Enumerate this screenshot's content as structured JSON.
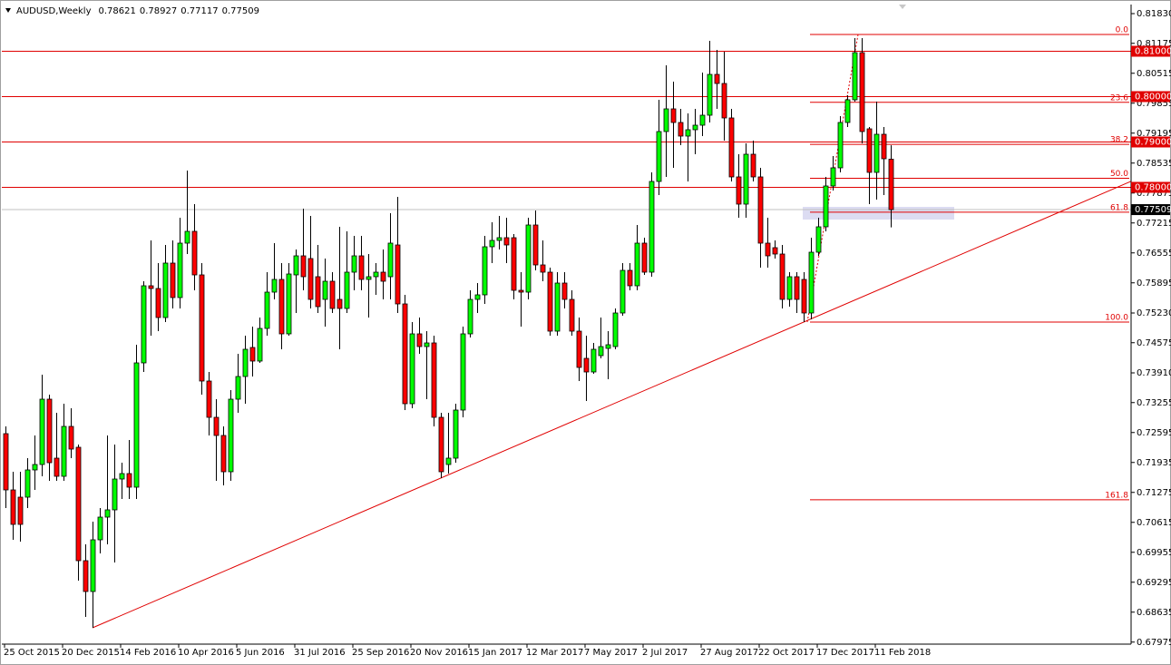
{
  "chart_data": {
    "type": "candlestick",
    "title": "AUDUSD,Weekly",
    "up_color": "#00ff00",
    "down_color": "#ff0000",
    "categories": [
      "25 Oct 2015",
      null,
      null,
      null,
      null,
      null,
      null,
      null,
      "20 Dec 2015",
      null,
      null,
      null,
      null,
      null,
      null,
      null,
      "14 Feb 2016",
      null,
      null,
      null,
      null,
      null,
      null,
      null,
      "10 Apr 2016",
      null,
      null,
      null,
      null,
      null,
      null,
      null,
      "5 Jun 2016",
      null,
      null,
      null,
      null,
      null,
      null,
      null,
      "31 Jul 2016",
      null,
      null,
      null,
      null,
      null,
      null,
      null,
      "25 Sep 2016",
      null,
      null,
      null,
      null,
      null,
      null,
      null,
      "20 Nov 2016",
      null,
      null,
      null,
      null,
      null,
      null,
      null,
      "15 Jan 2017",
      null,
      null,
      null,
      null,
      null,
      null,
      null,
      "12 Mar 2017",
      null,
      null,
      null,
      null,
      null,
      null,
      null,
      "7 May 2017",
      null,
      null,
      null,
      null,
      null,
      null,
      null,
      "2 Jul 2017",
      null,
      null,
      null,
      null,
      null,
      null,
      null,
      "27 Aug 2017",
      null,
      null,
      null,
      null,
      null,
      null,
      null,
      "22 Oct 2017",
      null,
      null,
      null,
      null,
      null,
      null,
      null,
      "17 Dec 2017",
      null,
      null,
      null,
      null,
      null,
      null,
      null,
      "11 Feb 2018",
      null,
      null
    ],
    "open": [
      0.7257,
      0.7133,
      0.7117,
      0.7117,
      0.7177,
      0.7189,
      0.7333,
      0.7203,
      0.7163,
      0.7273,
      0.7227,
      0.6977,
      0.6909,
      0.7023,
      0.7073,
      0.7089,
      0.7157,
      0.7169,
      0.7139,
      0.7413,
      0.7583,
      0.7577,
      0.7513,
      0.7633,
      0.7557,
      0.7677,
      0.7703,
      0.7607,
      0.7373,
      0.7293,
      0.7253,
      0.7173,
      0.7333,
      0.7383,
      0.7447,
      0.7417,
      0.7489,
      0.7569,
      0.7597,
      0.7477,
      0.7607,
      0.7649,
      0.7643,
      0.7603,
      0.7553,
      0.7593,
      0.7553,
      0.7533,
      0.7613,
      0.7649,
      0.7597,
      0.7603,
      0.7613,
      0.7603,
      0.7673,
      0.7543,
      0.7323,
      0.7477,
      0.7449,
      0.7457,
      0.7293,
      0.7189,
      0.7203,
      0.7309,
      0.7477,
      0.7553,
      0.7563,
      0.7669,
      0.7683,
      0.7689,
      0.7689,
      0.7573,
      0.7569,
      0.7717,
      0.7629,
      0.7613,
      0.7483,
      0.7589,
      0.7553,
      0.7483,
      0.7423,
      0.7393,
      0.7429,
      0.7445,
      0.7449,
      0.7523,
      0.7617,
      0.7583,
      0.7677,
      0.7613,
      0.7813,
      0.7923,
      0.7973,
      0.7943,
      0.7913,
      0.7927,
      0.7937,
      0.7959,
      0.8049,
      0.8029,
      0.7953,
      0.7823,
      0.7763,
      0.7873,
      0.7823,
      0.7677,
      0.7667,
      0.7653,
      0.7553,
      0.7603,
      0.7597,
      0.7523,
      0.7657,
      0.7713,
      0.7803,
      0.7843,
      0.7943,
      0.7993,
      0.8097,
      0.7929,
      0.7833,
      0.7917,
      0.78621
    ],
    "high": [
      0.7273,
      0.7173,
      0.7173,
      0.7203,
      0.7253,
      0.7387,
      0.7343,
      0.7303,
      0.7323,
      0.7313,
      0.7233,
      0.7013,
      0.7063,
      0.7093,
      0.7253,
      0.7233,
      0.7193,
      0.7243,
      0.7453,
      0.7593,
      0.7683,
      0.7633,
      0.7673,
      0.7683,
      0.7733,
      0.7837,
      0.7763,
      0.7633,
      0.7393,
      0.7333,
      0.7273,
      0.7353,
      0.7433,
      0.7473,
      0.7493,
      0.7513,
      0.7613,
      0.7677,
      0.7633,
      0.7633,
      0.7663,
      0.7753,
      0.7737,
      0.7673,
      0.7643,
      0.7613,
      0.7713,
      0.7703,
      0.7693,
      0.7693,
      0.7653,
      0.7633,
      0.7663,
      0.7743,
      0.7779,
      0.7563,
      0.7503,
      0.7513,
      0.7483,
      0.7473,
      0.7303,
      0.7303,
      0.7323,
      0.7493,
      0.7573,
      0.7589,
      0.7693,
      0.7723,
      0.7737,
      0.7733,
      0.7697,
      0.7613,
      0.7733,
      0.7749,
      0.7683,
      0.7623,
      0.7613,
      0.7613,
      0.7573,
      0.7513,
      0.7473,
      0.7457,
      0.7513,
      0.7483,
      0.7533,
      0.7633,
      0.7633,
      0.7717,
      0.7689,
      0.7833,
      0.7993,
      0.8069,
      0.8033,
      0.7973,
      0.7963,
      0.7973,
      0.8053,
      0.8123,
      0.8103,
      0.8099,
      0.7973,
      0.7873,
      0.7897,
      0.7903,
      0.7843,
      0.7733,
      0.7683,
      0.7673,
      0.7613,
      0.7613,
      0.7613,
      0.7689,
      0.7733,
      0.7823,
      0.7869,
      0.7957,
      0.8003,
      0.8129,
      0.8129,
      0.7933,
      0.7989,
      0.7933,
      0.78927
    ],
    "low": [
      0.7093,
      0.7023,
      0.7019,
      0.7093,
      0.7133,
      0.7163,
      0.7153,
      0.7153,
      0.7153,
      0.7203,
      0.6933,
      0.6853,
      0.6829,
      0.6993,
      0.7013,
      0.6973,
      0.7113,
      0.7113,
      0.7113,
      0.7393,
      0.7473,
      0.7483,
      0.7503,
      0.7533,
      0.7533,
      0.7653,
      0.7573,
      0.7343,
      0.7253,
      0.7153,
      0.7143,
      0.7153,
      0.7303,
      0.7323,
      0.7383,
      0.7413,
      0.7473,
      0.7553,
      0.7443,
      0.7473,
      0.7523,
      0.7573,
      0.7533,
      0.7523,
      0.7493,
      0.7523,
      0.7443,
      0.7523,
      0.7573,
      0.7573,
      0.7513,
      0.7563,
      0.7553,
      0.7553,
      0.7523,
      0.7309,
      0.7313,
      0.7433,
      0.7333,
      0.7273,
      0.7159,
      0.7169,
      0.7193,
      0.7293,
      0.7469,
      0.7523,
      0.7543,
      0.7633,
      0.7663,
      0.7633,
      0.7553,
      0.7493,
      0.7553,
      0.7617,
      0.7593,
      0.7473,
      0.7473,
      0.7533,
      0.7473,
      0.7373,
      0.7329,
      0.7389,
      0.7423,
      0.7377,
      0.7443,
      0.7517,
      0.7573,
      0.7573,
      0.7607,
      0.7603,
      0.7783,
      0.7823,
      0.7843,
      0.7893,
      0.7813,
      0.7873,
      0.7913,
      0.7943,
      0.7973,
      0.7903,
      0.7813,
      0.7733,
      0.7733,
      0.7813,
      0.7623,
      0.7623,
      0.7643,
      0.7533,
      0.7537,
      0.7523,
      0.7503,
      0.7509,
      0.7649,
      0.7703,
      0.7793,
      0.7833,
      0.7933,
      0.7989,
      0.7897,
      0.7763,
      0.7773,
      0.7783,
      0.77117
    ],
    "close": [
      0.7133,
      0.7057,
      0.7057,
      0.7177,
      0.7189,
      0.7333,
      0.7193,
      0.7163,
      0.7273,
      0.7223,
      0.6977,
      0.6909,
      0.7023,
      0.7073,
      0.7089,
      0.7157,
      0.7169,
      0.7139,
      0.7413,
      0.7583,
      0.7577,
      0.7513,
      0.7633,
      0.7557,
      0.7677,
      0.7703,
      0.7607,
      0.7373,
      0.7293,
      0.7253,
      0.7173,
      0.7333,
      0.7383,
      0.7443,
      0.7417,
      0.7489,
      0.7569,
      0.7597,
      0.7477,
      0.7609,
      0.7649,
      0.7603,
      0.7553,
      0.7537,
      0.7593,
      0.7533,
      0.7533,
      0.7613,
      0.7649,
      0.7597,
      0.7603,
      0.7613,
      0.7593,
      0.7677,
      0.7543,
      0.7323,
      0.7477,
      0.7449,
      0.7457,
      0.7293,
      0.7173,
      0.7203,
      0.7309,
      0.7477,
      0.7553,
      0.7563,
      0.7669,
      0.7683,
      0.7689,
      0.7673,
      0.7573,
      0.7569,
      0.7717,
      0.7629,
      0.7613,
      0.7483,
      0.7589,
      0.7553,
      0.7483,
      0.7403,
      0.7393,
      0.7443,
      0.7449,
      0.7453,
      0.7523,
      0.7617,
      0.7583,
      0.7677,
      0.7613,
      0.7813,
      0.7923,
      0.7973,
      0.7943,
      0.7913,
      0.7927,
      0.7937,
      0.7959,
      0.8049,
      0.8029,
      0.7953,
      0.7823,
      0.7763,
      0.7873,
      0.7823,
      0.7677,
      0.7649,
      0.7653,
      0.7553,
      0.7603,
      0.7553,
      0.7523,
      0.7657,
      0.7713,
      0.7803,
      0.7843,
      0.7943,
      0.7993,
      0.8097,
      0.7923,
      0.7833,
      0.7917,
      0.7863,
      0.77509
    ],
    "ylim": [
      0.6793,
      0.8203
    ],
    "yticks": [
      {
        "value": 0.8183,
        "label": "0.81830"
      },
      0.81175,
      0.80515,
      0.79855,
      0.79195,
      0.78535,
      0.77875,
      0.77215,
      0.76555,
      0.75895,
      {
        "value": 0.7523,
        "label": "0.75230"
      },
      0.74575,
      {
        "value": 0.7391,
        "label": "0.73910"
      },
      0.73255,
      0.72595,
      0.71935,
      0.71275,
      0.70615,
      0.69955,
      0.69295,
      0.68635,
      0.67975
    ],
    "hlines": [
      {
        "value": 0.81,
        "label": "0.81000"
      },
      {
        "value": 0.8,
        "label": "0.80000"
      },
      {
        "value": 0.79,
        "label": "0.79000"
      },
      {
        "value": 0.78,
        "label": "0.78000"
      }
    ],
    "zone": [
      0.7729,
      0.7757
    ],
    "fib": {
      "from": 0.7503,
      "to": 0.8137,
      "levels": [
        {
          "value": 0,
          "label": "0.0"
        },
        23.6,
        38.2,
        {
          "value": 50,
          "label": "50.0"
        },
        61.8,
        {
          "value": 100,
          "label": "100.0"
        },
        161.8
      ]
    }
  }
}
